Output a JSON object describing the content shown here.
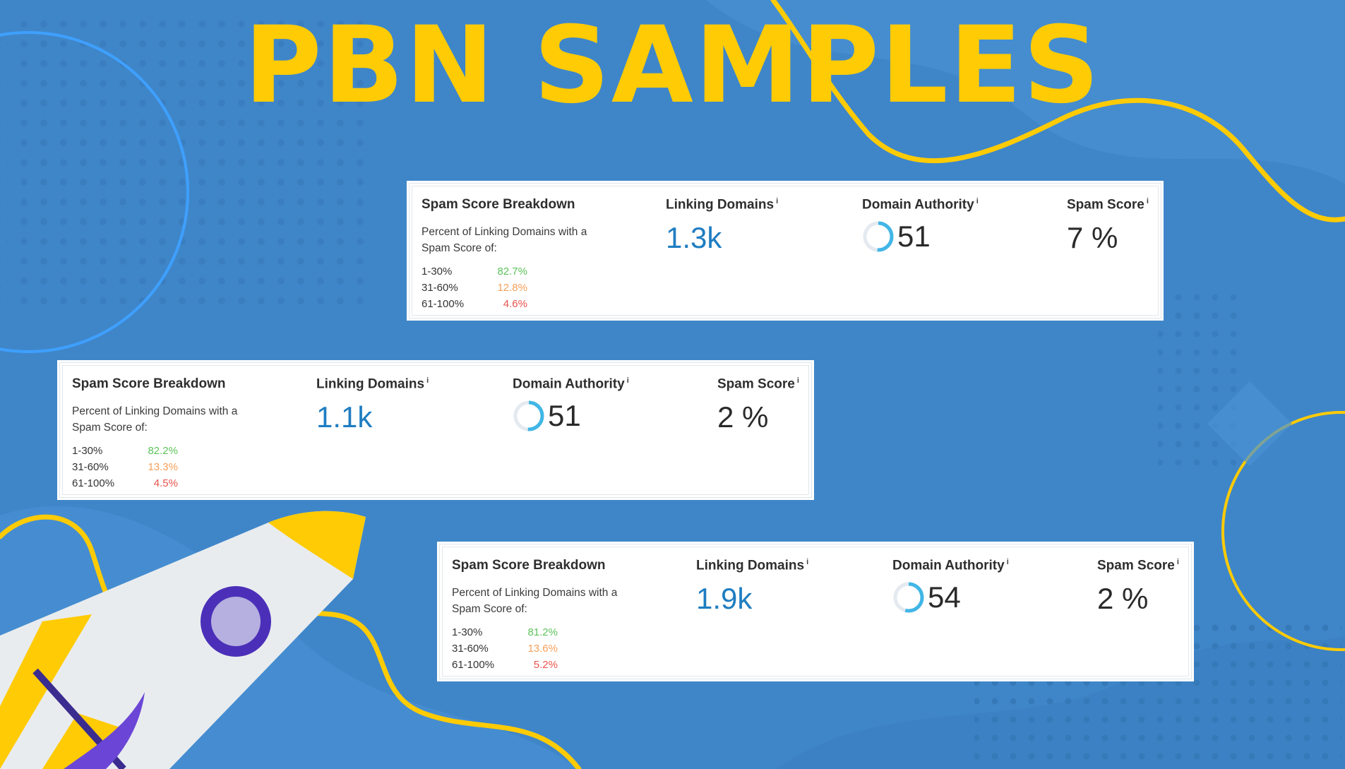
{
  "title": "PBN SAMPLES",
  "colors": {
    "background": "#3f86c9",
    "title": "#ffcb05",
    "accent_blue": "#1f7dc1",
    "green": "#5cc35a",
    "orange": "#f5a05a",
    "red": "#e8534c"
  },
  "labels": {
    "breakdown_title": "Spam Score Breakdown",
    "breakdown_sub": "Percent of Linking Domains with a Spam Score of:",
    "linking_domains": "Linking Domains",
    "domain_authority": "Domain Authority",
    "spam_score": "Spam Score",
    "info": "i"
  },
  "cards": [
    {
      "breakdown": [
        {
          "range": "1-30%",
          "pct": "82.7%"
        },
        {
          "range": "31-60%",
          "pct": "12.8%"
        },
        {
          "range": "61-100%",
          "pct": "4.6%"
        }
      ],
      "linking_domains": "1.3k",
      "domain_authority": "51",
      "domain_authority_value": 51,
      "spam_score": "7 %"
    },
    {
      "breakdown": [
        {
          "range": "1-30%",
          "pct": "82.2%"
        },
        {
          "range": "31-60%",
          "pct": "13.3%"
        },
        {
          "range": "61-100%",
          "pct": "4.5%"
        }
      ],
      "linking_domains": "1.1k",
      "domain_authority": "51",
      "domain_authority_value": 51,
      "spam_score": "2 %"
    },
    {
      "breakdown": [
        {
          "range": "1-30%",
          "pct": "81.2%"
        },
        {
          "range": "31-60%",
          "pct": "13.6%"
        },
        {
          "range": "61-100%",
          "pct": "5.2%"
        }
      ],
      "linking_domains": "1.9k",
      "domain_authority": "54",
      "domain_authority_value": 54,
      "spam_score": "2 %"
    }
  ],
  "decorations": [
    "rocket-illustration",
    "wavy-line",
    "circle-outline",
    "dot-grid"
  ]
}
